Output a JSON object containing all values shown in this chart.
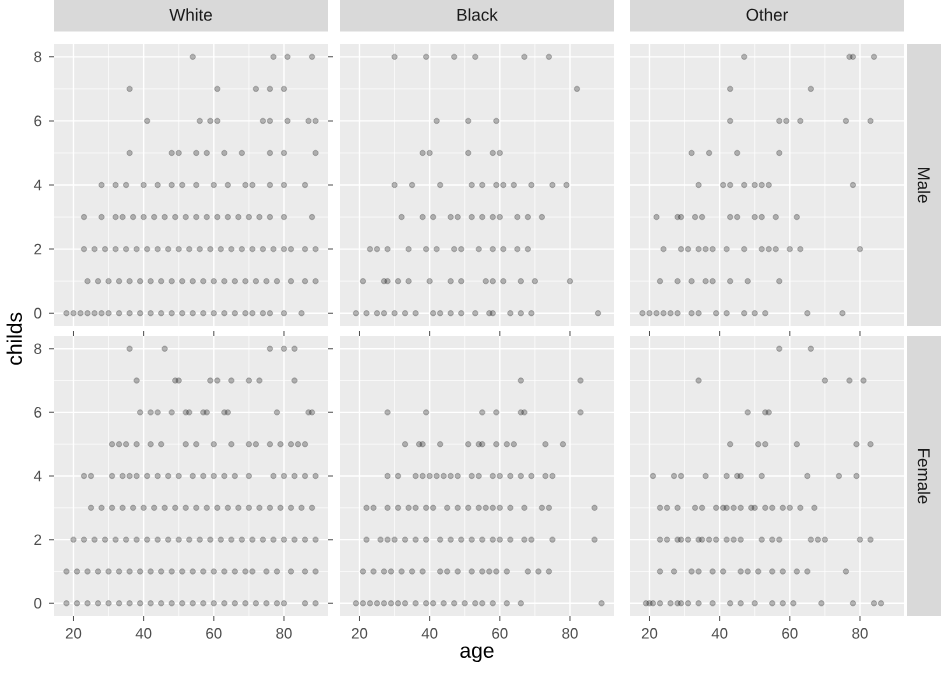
{
  "chart_data": [
    {
      "type": "scatter",
      "title": "White",
      "color": "#000000",
      "marker": "circle",
      "grid": true,
      "tick_labels": "y",
      "xlim": [
        14.45,
        92.55
      ],
      "ylim": [
        -0.4,
        8.4
      ],
      "xticks": [
        20,
        40,
        60,
        80
      ],
      "yticks": [
        0,
        2,
        4,
        6,
        8
      ],
      "x": [
        18,
        20,
        22,
        24,
        26,
        28,
        30,
        33,
        36,
        39,
        42,
        45,
        48,
        51,
        54,
        57,
        60,
        63,
        66,
        69,
        71,
        74,
        76,
        80,
        85,
        24,
        27,
        30,
        33,
        36,
        39,
        42,
        45,
        48,
        51,
        54,
        57,
        60,
        63,
        66,
        69,
        72,
        75,
        78,
        82,
        86,
        89,
        23,
        26,
        29,
        32,
        35,
        38,
        41,
        44,
        47,
        50,
        53,
        56,
        59,
        62,
        65,
        68,
        71,
        74,
        77,
        80,
        82,
        86,
        89,
        23,
        28,
        32,
        34,
        37,
        40,
        43,
        46,
        49,
        52,
        55,
        58,
        61,
        64,
        67,
        70,
        73,
        76,
        80,
        88,
        28,
        32,
        35,
        40,
        44,
        48,
        51,
        55,
        60,
        64,
        69,
        71,
        76,
        80,
        86,
        36,
        48,
        50,
        55,
        58,
        63,
        68,
        76,
        80,
        89,
        41,
        56,
        59,
        61,
        74,
        76,
        81,
        87,
        89,
        36,
        61,
        72,
        76,
        80,
        54,
        77,
        81,
        88
      ],
      "values": [
        0,
        0,
        0,
        0,
        0,
        0,
        0,
        0,
        0,
        0,
        0,
        0,
        0,
        0,
        0,
        0,
        0,
        0,
        0,
        0,
        0,
        0,
        0,
        0,
        0,
        1,
        1,
        1,
        1,
        1,
        1,
        1,
        1,
        1,
        1,
        1,
        1,
        1,
        1,
        1,
        1,
        1,
        1,
        1,
        1,
        1,
        1,
        2,
        2,
        2,
        2,
        2,
        2,
        2,
        2,
        2,
        2,
        2,
        2,
        2,
        2,
        2,
        2,
        2,
        2,
        2,
        2,
        2,
        2,
        2,
        3,
        3,
        3,
        3,
        3,
        3,
        3,
        3,
        3,
        3,
        3,
        3,
        3,
        3,
        3,
        3,
        3,
        3,
        3,
        3,
        4,
        4,
        4,
        4,
        4,
        4,
        4,
        4,
        4,
        4,
        4,
        4,
        4,
        4,
        4,
        5,
        5,
        5,
        5,
        5,
        5,
        5,
        5,
        5,
        5,
        6,
        6,
        6,
        6,
        6,
        6,
        6,
        6,
        6,
        7,
        7,
        7,
        7,
        7,
        8,
        8,
        8,
        8
      ]
    },
    {
      "type": "scatter",
      "title": "Black",
      "color": "#000000",
      "marker": "circle",
      "grid": true,
      "tick_labels": false,
      "xlim": [
        14.45,
        92.55
      ],
      "ylim": [
        -0.4,
        8.4
      ],
      "xticks": [
        20,
        40,
        60,
        80
      ],
      "yticks": [
        0,
        2,
        4,
        6,
        8
      ],
      "x": [
        19,
        22,
        25,
        27,
        30,
        33,
        36,
        41,
        43,
        46,
        49,
        53,
        57,
        58,
        63,
        66,
        69,
        88,
        21,
        27,
        28,
        31,
        34,
        40,
        46,
        49,
        56,
        58,
        61,
        66,
        70,
        80,
        23,
        25,
        28,
        34,
        39,
        42,
        47,
        49,
        54,
        58,
        61,
        65,
        68,
        32,
        38,
        41,
        46,
        48,
        52,
        55,
        58,
        60,
        65,
        68,
        72,
        30,
        35,
        43,
        52,
        55,
        59,
        61,
        64,
        69,
        75,
        79,
        38,
        40,
        51,
        58,
        60,
        42,
        51,
        59,
        82,
        30,
        39,
        47,
        53,
        67,
        74
      ],
      "values": [
        0,
        0,
        0,
        0,
        0,
        0,
        0,
        0,
        0,
        0,
        0,
        0,
        0,
        0,
        0,
        0,
        0,
        0,
        1,
        1,
        1,
        1,
        1,
        1,
        1,
        1,
        1,
        1,
        1,
        1,
        1,
        1,
        2,
        2,
        2,
        2,
        2,
        2,
        2,
        2,
        2,
        2,
        2,
        2,
        2,
        3,
        3,
        3,
        3,
        3,
        3,
        3,
        3,
        3,
        3,
        3,
        3,
        4,
        4,
        4,
        4,
        4,
        4,
        4,
        4,
        4,
        4,
        4,
        5,
        5,
        5,
        5,
        5,
        6,
        6,
        6,
        7,
        8,
        8,
        8,
        8,
        8,
        8
      ]
    },
    {
      "type": "scatter",
      "title": "Other",
      "y2label": "Male",
      "color": "#000000",
      "marker": "circle",
      "grid": true,
      "tick_labels": false,
      "xlim": [
        14.45,
        92.55
      ],
      "ylim": [
        -0.4,
        8.4
      ],
      "xticks": [
        20,
        40,
        60,
        80
      ],
      "yticks": [
        0,
        2,
        4,
        6,
        8
      ],
      "x": [
        18,
        20,
        22,
        24,
        26,
        28,
        32,
        34,
        39,
        42,
        47,
        50,
        53,
        65,
        75,
        23,
        28,
        32,
        36,
        38,
        43,
        48,
        57,
        24,
        29,
        31,
        34,
        36,
        38,
        42,
        47,
        52,
        54,
        56,
        60,
        63,
        80,
        22,
        28,
        29,
        33,
        35,
        43,
        45,
        50,
        52,
        56,
        62,
        34,
        41,
        43,
        47,
        50,
        52,
        54,
        78,
        32,
        37,
        45,
        57,
        43,
        57,
        59,
        63,
        76,
        83,
        43,
        66,
        47,
        77,
        78,
        84
      ],
      "values": [
        0,
        0,
        0,
        0,
        0,
        0,
        0,
        0,
        0,
        0,
        0,
        0,
        0,
        0,
        0,
        1,
        1,
        1,
        1,
        1,
        1,
        1,
        1,
        2,
        2,
        2,
        2,
        2,
        2,
        2,
        2,
        2,
        2,
        2,
        2,
        2,
        2,
        3,
        3,
        3,
        3,
        3,
        3,
        3,
        3,
        3,
        3,
        3,
        4,
        4,
        4,
        4,
        4,
        4,
        4,
        4,
        5,
        5,
        5,
        5,
        6,
        6,
        6,
        6,
        6,
        6,
        7,
        7,
        8,
        8,
        8,
        8
      ]
    },
    {
      "type": "scatter",
      "ylabel": "childs",
      "color": "#000000",
      "marker": "circle",
      "grid": true,
      "xlim": [
        14.45,
        92.55
      ],
      "ylim": [
        -0.4,
        8.4
      ],
      "xticks": [
        20,
        40,
        60,
        80
      ],
      "yticks": [
        0,
        2,
        4,
        6,
        8
      ],
      "x": [
        18,
        21,
        24,
        27,
        30,
        33,
        36,
        39,
        42,
        45,
        48,
        51,
        54,
        57,
        60,
        63,
        66,
        69,
        72,
        75,
        78,
        80,
        86,
        89,
        18,
        21,
        24,
        27,
        30,
        33,
        36,
        39,
        42,
        45,
        48,
        51,
        54,
        57,
        60,
        63,
        66,
        69,
        71,
        75,
        78,
        82,
        86,
        89,
        20,
        23,
        26,
        29,
        32,
        35,
        38,
        41,
        44,
        47,
        50,
        53,
        56,
        59,
        62,
        65,
        68,
        71,
        74,
        77,
        80,
        83,
        86,
        89,
        25,
        28,
        31,
        34,
        37,
        40,
        43,
        46,
        49,
        52,
        55,
        58,
        61,
        64,
        67,
        70,
        73,
        76,
        79,
        82,
        85,
        88,
        23,
        25,
        31,
        34,
        36,
        38,
        41,
        44,
        47,
        50,
        54,
        57,
        60,
        63,
        66,
        70,
        77,
        80,
        83,
        86,
        89,
        31,
        33,
        35,
        38,
        42,
        45,
        52,
        55,
        60,
        65,
        70,
        72,
        76,
        79,
        82,
        84,
        86,
        39,
        42,
        44,
        48,
        52,
        53,
        57,
        58,
        63,
        64,
        78,
        87,
        88,
        38,
        49,
        50,
        59,
        61,
        65,
        70,
        73,
        83,
        36,
        46,
        76,
        80,
        83
      ],
      "values": [
        0,
        0,
        0,
        0,
        0,
        0,
        0,
        0,
        0,
        0,
        0,
        0,
        0,
        0,
        0,
        0,
        0,
        0,
        0,
        0,
        0,
        0,
        0,
        0,
        1,
        1,
        1,
        1,
        1,
        1,
        1,
        1,
        1,
        1,
        1,
        1,
        1,
        1,
        1,
        1,
        1,
        1,
        1,
        1,
        1,
        1,
        1,
        1,
        2,
        2,
        2,
        2,
        2,
        2,
        2,
        2,
        2,
        2,
        2,
        2,
        2,
        2,
        2,
        2,
        2,
        2,
        2,
        2,
        2,
        2,
        2,
        2,
        3,
        3,
        3,
        3,
        3,
        3,
        3,
        3,
        3,
        3,
        3,
        3,
        3,
        3,
        3,
        3,
        3,
        3,
        3,
        3,
        3,
        3,
        4,
        4,
        4,
        4,
        4,
        4,
        4,
        4,
        4,
        4,
        4,
        4,
        4,
        4,
        4,
        4,
        4,
        4,
        4,
        4,
        4,
        5,
        5,
        5,
        5,
        5,
        5,
        5,
        5,
        5,
        5,
        5,
        5,
        5,
        5,
        5,
        5,
        5,
        6,
        6,
        6,
        6,
        6,
        6,
        6,
        6,
        6,
        6,
        6,
        6,
        6,
        7,
        7,
        7,
        7,
        7,
        7,
        7,
        7,
        7,
        8,
        8,
        8,
        8,
        8
      ]
    },
    {
      "type": "scatter",
      "xlabel": "age",
      "color": "#000000",
      "marker": "circle",
      "grid": true,
      "tick_labels": "x",
      "xlim": [
        14.45,
        92.55
      ],
      "ylim": [
        -0.4,
        8.4
      ],
      "xticks": [
        20,
        40,
        60,
        80
      ],
      "yticks": [
        0,
        2,
        4,
        6,
        8
      ],
      "x": [
        19,
        21,
        23,
        25,
        27,
        29,
        31,
        33,
        36,
        39,
        41,
        44,
        47,
        50,
        53,
        55,
        58,
        62,
        66,
        89,
        21,
        24,
        27,
        29,
        32,
        35,
        38,
        43,
        45,
        48,
        52,
        55,
        57,
        59,
        62,
        68,
        71,
        74,
        22,
        26,
        28,
        30,
        33,
        36,
        39,
        43,
        46,
        49,
        52,
        55,
        58,
        60,
        63,
        67,
        69,
        75,
        87,
        22,
        24,
        28,
        31,
        34,
        36,
        39,
        41,
        45,
        48,
        51,
        54,
        56,
        58,
        60,
        63,
        67,
        72,
        74,
        87,
        28,
        31,
        36,
        38,
        40,
        42,
        44,
        46,
        48,
        52,
        54,
        58,
        60,
        63,
        66,
        69,
        73,
        75,
        33,
        37,
        38,
        43,
        51,
        54,
        55,
        59,
        62,
        64,
        73,
        78,
        28,
        39,
        55,
        59,
        66,
        67,
        83,
        66,
        83
      ],
      "values": [
        0,
        0,
        0,
        0,
        0,
        0,
        0,
        0,
        0,
        0,
        0,
        0,
        0,
        0,
        0,
        0,
        0,
        0,
        0,
        0,
        1,
        1,
        1,
        1,
        1,
        1,
        1,
        1,
        1,
        1,
        1,
        1,
        1,
        1,
        1,
        1,
        1,
        1,
        2,
        2,
        2,
        2,
        2,
        2,
        2,
        2,
        2,
        2,
        2,
        2,
        2,
        2,
        2,
        2,
        2,
        2,
        2,
        3,
        3,
        3,
        3,
        3,
        3,
        3,
        3,
        3,
        3,
        3,
        3,
        3,
        3,
        3,
        3,
        3,
        3,
        3,
        3,
        4,
        4,
        4,
        4,
        4,
        4,
        4,
        4,
        4,
        4,
        4,
        4,
        4,
        4,
        4,
        4,
        4,
        4,
        5,
        5,
        5,
        5,
        5,
        5,
        5,
        5,
        5,
        5,
        5,
        5,
        6,
        6,
        6,
        6,
        6,
        6,
        6,
        7,
        7
      ]
    },
    {
      "type": "scatter",
      "y2label": "Female",
      "color": "#000000",
      "marker": "circle",
      "grid": true,
      "tick_labels": "x",
      "xlim": [
        14.45,
        92.55
      ],
      "ylim": [
        -0.4,
        8.4
      ],
      "xticks": [
        20,
        40,
        60,
        80
      ],
      "yticks": [
        0,
        2,
        4,
        6,
        8
      ],
      "x": [
        19,
        20,
        21,
        23,
        26,
        28,
        29,
        31,
        34,
        38,
        43,
        46,
        50,
        55,
        58,
        61,
        69,
        78,
        84,
        86,
        23,
        27,
        32,
        34,
        38,
        41,
        46,
        48,
        51,
        55,
        58,
        62,
        65,
        76,
        23,
        25,
        28,
        29,
        31,
        34,
        35,
        37,
        39,
        42,
        44,
        46,
        52,
        55,
        57,
        66,
        68,
        70,
        80,
        83,
        23,
        25,
        28,
        33,
        35,
        39,
        41,
        42,
        44,
        46,
        49,
        50,
        53,
        55,
        58,
        60,
        63,
        67,
        21,
        27,
        29,
        36,
        42,
        45,
        46,
        52,
        65,
        74,
        79,
        43,
        51,
        53,
        62,
        79,
        83,
        48,
        53,
        54,
        34,
        70,
        77,
        81,
        57,
        66
      ],
      "values": [
        0,
        0,
        0,
        0,
        0,
        0,
        0,
        0,
        0,
        0,
        0,
        0,
        0,
        0,
        0,
        0,
        0,
        0,
        0,
        0,
        1,
        1,
        1,
        1,
        1,
        1,
        1,
        1,
        1,
        1,
        1,
        1,
        1,
        1,
        2,
        2,
        2,
        2,
        2,
        2,
        2,
        2,
        2,
        2,
        2,
        2,
        2,
        2,
        2,
        2,
        2,
        2,
        2,
        2,
        3,
        3,
        3,
        3,
        3,
        3,
        3,
        3,
        3,
        3,
        3,
        3,
        3,
        3,
        3,
        3,
        3,
        3,
        4,
        4,
        4,
        4,
        4,
        4,
        4,
        4,
        4,
        4,
        4,
        5,
        5,
        5,
        5,
        5,
        5,
        6,
        6,
        6,
        7,
        7,
        7,
        7,
        8,
        8
      ]
    }
  ]
}
